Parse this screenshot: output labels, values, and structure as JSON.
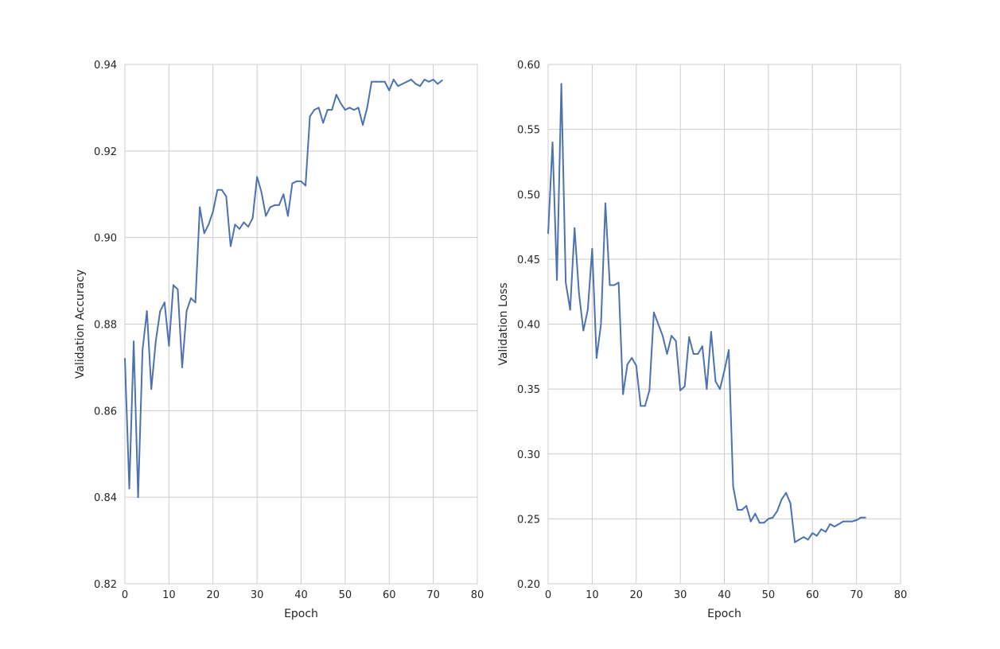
{
  "chart_data": [
    {
      "type": "line",
      "xlabel": "Epoch",
      "ylabel": "Validation Accuracy",
      "xlim": [
        0,
        80
      ],
      "ylim": [
        0.82,
        0.94
      ],
      "xticks": [
        "0",
        "10",
        "20",
        "30",
        "40",
        "50",
        "60",
        "70",
        "80"
      ],
      "yticks": [
        "0.82",
        "0.84",
        "0.86",
        "0.88",
        "0.90",
        "0.92",
        "0.94"
      ],
      "grid": true,
      "color": "#4c72b0",
      "series": [
        {
          "x": [
            0,
            1,
            2,
            3,
            4,
            5,
            6,
            7,
            8,
            9,
            10,
            11,
            12,
            13,
            14,
            15,
            16,
            17,
            18,
            19,
            20,
            21,
            22,
            23,
            24,
            25,
            26,
            27,
            28,
            29,
            30,
            31,
            32,
            33,
            34,
            35,
            36,
            37,
            38,
            39,
            40,
            41,
            42,
            43,
            44,
            45,
            46,
            47,
            48,
            49,
            50,
            51,
            52,
            53,
            54,
            55,
            56,
            57,
            58,
            59,
            60,
            61,
            62,
            63,
            64,
            65,
            66,
            67,
            68,
            69,
            70,
            71,
            72
          ],
          "values": [
            0.872,
            0.842,
            0.876,
            0.84,
            0.874,
            0.883,
            0.865,
            0.876,
            0.883,
            0.885,
            0.875,
            0.889,
            0.888,
            0.87,
            0.883,
            0.886,
            0.885,
            0.907,
            0.901,
            0.903,
            0.906,
            0.911,
            0.911,
            0.9095,
            0.898,
            0.903,
            0.902,
            0.9035,
            0.9025,
            0.9045,
            0.914,
            0.9105,
            0.905,
            0.907,
            0.9075,
            0.9075,
            0.91,
            0.905,
            0.9125,
            0.913,
            0.913,
            0.912,
            0.928,
            0.9295,
            0.93,
            0.9265,
            0.9295,
            0.9295,
            0.933,
            0.931,
            0.9295,
            0.93,
            0.9295,
            0.93,
            0.926,
            0.93,
            0.936,
            0.936,
            0.936,
            0.936,
            0.934,
            0.9365,
            0.935,
            0.9355,
            0.936,
            0.9365,
            0.9355,
            0.935,
            0.9365,
            0.936,
            0.9365,
            0.9355,
            0.9363
          ]
        }
      ]
    },
    {
      "type": "line",
      "xlabel": "Epoch",
      "ylabel": "Validation Loss",
      "xlim": [
        0,
        80
      ],
      "ylim": [
        0.2,
        0.6
      ],
      "xticks": [
        "0",
        "10",
        "20",
        "30",
        "40",
        "50",
        "60",
        "70",
        "80"
      ],
      "yticks": [
        "0.20",
        "0.25",
        "0.30",
        "0.35",
        "0.40",
        "0.45",
        "0.50",
        "0.55",
        "0.60"
      ],
      "grid": true,
      "color": "#4c72b0",
      "series": [
        {
          "x": [
            0,
            1,
            2,
            3,
            4,
            5,
            6,
            7,
            8,
            9,
            10,
            11,
            12,
            13,
            14,
            15,
            16,
            17,
            18,
            19,
            20,
            21,
            22,
            23,
            24,
            25,
            26,
            27,
            28,
            29,
            30,
            31,
            32,
            33,
            34,
            35,
            36,
            37,
            38,
            39,
            40,
            41,
            42,
            43,
            44,
            45,
            46,
            47,
            48,
            49,
            50,
            51,
            52,
            53,
            54,
            55,
            56,
            57,
            58,
            59,
            60,
            61,
            62,
            63,
            64,
            65,
            66,
            67,
            68,
            69,
            70,
            71,
            72
          ],
          "values": [
            0.47,
            0.54,
            0.434,
            0.585,
            0.432,
            0.411,
            0.474,
            0.424,
            0.395,
            0.411,
            0.458,
            0.374,
            0.4,
            0.493,
            0.43,
            0.43,
            0.432,
            0.346,
            0.369,
            0.374,
            0.368,
            0.337,
            0.337,
            0.349,
            0.409,
            0.4,
            0.391,
            0.377,
            0.391,
            0.387,
            0.349,
            0.352,
            0.39,
            0.377,
            0.377,
            0.383,
            0.35,
            0.394,
            0.356,
            0.35,
            0.364,
            0.38,
            0.275,
            0.257,
            0.257,
            0.26,
            0.248,
            0.254,
            0.247,
            0.247,
            0.25,
            0.251,
            0.256,
            0.265,
            0.27,
            0.262,
            0.232,
            0.234,
            0.236,
            0.234,
            0.239,
            0.237,
            0.242,
            0.24,
            0.246,
            0.244,
            0.246,
            0.248,
            0.248,
            0.248,
            0.249,
            0.251,
            0.251
          ]
        }
      ]
    }
  ]
}
